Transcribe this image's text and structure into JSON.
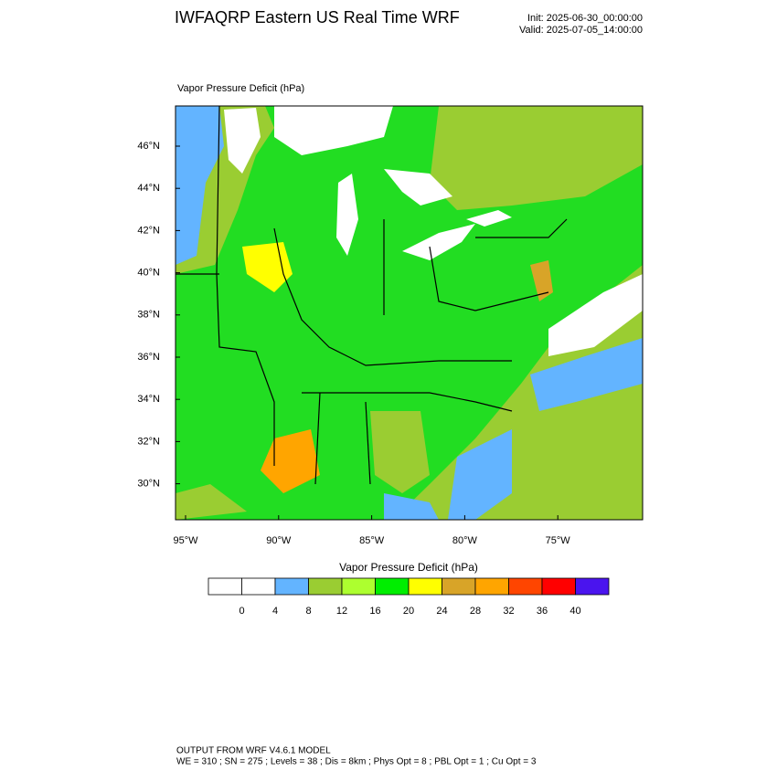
{
  "header": {
    "title": "IWFAQRP Eastern US Real Time WRF",
    "init": "Init: 2025-06-30_00:00:00",
    "valid": "Valid: 2025-07-05_14:00:00"
  },
  "map": {
    "subtitle": "Vapor Pressure Deficit   (hPa)",
    "lat_labels": [
      "46°N",
      "44°N",
      "42°N",
      "40°N",
      "38°N",
      "36°N",
      "34°N",
      "32°N",
      "30°N"
    ],
    "lon_labels": [
      "95°W",
      "90°W",
      "85°W",
      "80°W",
      "75°W"
    ]
  },
  "colorbar": {
    "title": "Vapor Pressure Deficit  (hPa)",
    "colors": [
      "#ffffff",
      "#ffffff",
      "#63b4ff",
      "#9acd32",
      "#adff2f",
      "#00ee00",
      "#ffff00",
      "#d8a428",
      "#ffa500",
      "#ff4500",
      "#ff0000",
      "#4a14ee"
    ],
    "labels": [
      "0",
      "4",
      "8",
      "12",
      "16",
      "20",
      "24",
      "28",
      "32",
      "36",
      "40"
    ]
  },
  "footer": {
    "line1": "OUTPUT FROM WRF V4.6.1 MODEL",
    "line2": "WE = 310 ; SN = 275 ; Levels = 38 ; Dis = 8km ; Phys Opt = 8 ; PBL Opt = 1 ; Cu Opt = 3"
  }
}
